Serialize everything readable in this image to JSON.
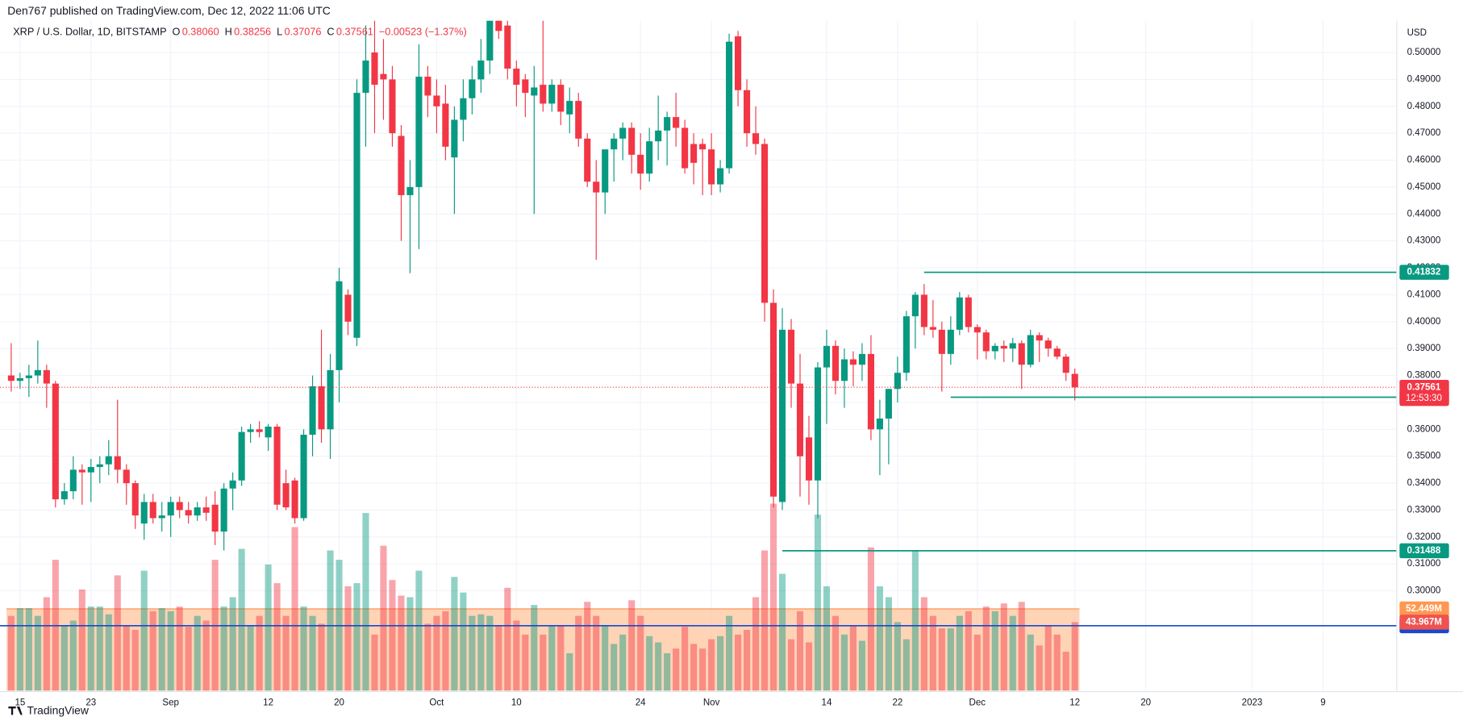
{
  "header": {
    "publisher": "Den767 published on TradingView.com, Dec 12, 2022 11:06 UTC"
  },
  "footer": {
    "brand": "TradingView"
  },
  "chart_data": {
    "type": "candlestick",
    "symbol": "XRP / U.S. Dollar, 1D, BITSTAMP",
    "ohlc_labels": [
      {
        "key": "O",
        "label": "0.38060"
      },
      {
        "key": "H",
        "label": "0.38256"
      },
      {
        "key": "L",
        "label": "0.37076"
      },
      {
        "key": "C",
        "label": "0.37561"
      }
    ],
    "change": "−0.00523 (−1.37%)",
    "currency": "USD",
    "up_color": "#089981",
    "down_color": "#f23645",
    "open": [
      0.38,
      0.378,
      0.379,
      0.38,
      0.382,
      0.377,
      0.334,
      0.337,
      0.345,
      0.344,
      0.346,
      0.347,
      0.35,
      0.345,
      0.34,
      0.325,
      0.333,
      0.327,
      0.328,
      0.333,
      0.33,
      0.328,
      0.331,
      0.332,
      0.322,
      0.338,
      0.341,
      0.359,
      0.36,
      0.357,
      0.361,
      0.34,
      0.341,
      0.327,
      0.358,
      0.376,
      0.36,
      0.382,
      0.41,
      0.394,
      0.485,
      0.5,
      0.492,
      0.49,
      0.469,
      0.447,
      0.45,
      0.491,
      0.484,
      0.481,
      0.461,
      0.475,
      0.483,
      0.49,
      0.497,
      0.515,
      0.51,
      0.494,
      0.49,
      0.484,
      0.488,
      0.481,
      0.488,
      0.477,
      0.482,
      0.468,
      0.452,
      0.448,
      0.464,
      0.468,
      0.472,
      0.462,
      0.455,
      0.467,
      0.471,
      0.476,
      0.472,
      0.466,
      0.466,
      0.464,
      0.451,
      0.457,
      0.506,
      0.486,
      0.47,
      0.466,
      0.407,
      0.333,
      0.397,
      0.377,
      0.357,
      0.341,
      0.383,
      0.391,
      0.378,
      0.386,
      0.384,
      0.388,
      0.36,
      0.364,
      0.375,
      0.381,
      0.402,
      0.41,
      0.398,
      0.397,
      0.388,
      0.397,
      0.409,
      0.398,
      0.396,
      0.389,
      0.391,
      0.39,
      0.392,
      0.384,
      0.395,
      0.393,
      0.39,
      0.387,
      0.3806
    ],
    "high": [
      0.392,
      0.381,
      0.384,
      0.393,
      0.384,
      0.378,
      0.34,
      0.35,
      0.347,
      0.349,
      0.35,
      0.356,
      0.371,
      0.347,
      0.341,
      0.336,
      0.336,
      0.333,
      0.335,
      0.335,
      0.333,
      0.333,
      0.335,
      0.337,
      0.34,
      0.344,
      0.361,
      0.362,
      0.363,
      0.362,
      0.362,
      0.345,
      0.342,
      0.36,
      0.38,
      0.397,
      0.388,
      0.42,
      0.412,
      0.49,
      0.51,
      0.515,
      0.505,
      0.495,
      0.473,
      0.46,
      0.503,
      0.495,
      0.49,
      0.488,
      0.48,
      0.49,
      0.495,
      0.505,
      0.52,
      0.52,
      0.515,
      0.497,
      0.492,
      0.495,
      0.515,
      0.49,
      0.49,
      0.487,
      0.485,
      0.47,
      0.46,
      0.463,
      0.47,
      0.474,
      0.474,
      0.47,
      0.472,
      0.484,
      0.478,
      0.485,
      0.475,
      0.47,
      0.468,
      0.47,
      0.46,
      0.507,
      0.508,
      0.49,
      0.48,
      0.468,
      0.412,
      0.405,
      0.401,
      0.388,
      0.365,
      0.385,
      0.397,
      0.393,
      0.39,
      0.389,
      0.392,
      0.395,
      0.371,
      0.375,
      0.387,
      0.404,
      0.411,
      0.414,
      0.408,
      0.4,
      0.402,
      0.411,
      0.41,
      0.399,
      0.397,
      0.392,
      0.393,
      0.394,
      0.393,
      0.397,
      0.396,
      0.394,
      0.391,
      0.388,
      0.38256
    ],
    "low": [
      0.374,
      0.375,
      0.372,
      0.377,
      0.368,
      0.331,
      0.332,
      0.334,
      0.332,
      0.333,
      0.34,
      0.343,
      0.34,
      0.332,
      0.323,
      0.319,
      0.325,
      0.322,
      0.32,
      0.327,
      0.325,
      0.326,
      0.326,
      0.317,
      0.315,
      0.33,
      0.339,
      0.355,
      0.357,
      0.352,
      0.33,
      0.33,
      0.325,
      0.326,
      0.35,
      0.355,
      0.349,
      0.37,
      0.395,
      0.391,
      0.465,
      0.47,
      0.475,
      0.465,
      0.43,
      0.418,
      0.427,
      0.476,
      0.47,
      0.46,
      0.44,
      0.467,
      0.477,
      0.485,
      0.492,
      0.505,
      0.49,
      0.48,
      0.476,
      0.44,
      0.478,
      0.478,
      0.473,
      0.47,
      0.465,
      0.45,
      0.423,
      0.44,
      0.452,
      0.46,
      0.455,
      0.449,
      0.452,
      0.46,
      0.458,
      0.465,
      0.455,
      0.451,
      0.447,
      0.447,
      0.448,
      0.455,
      0.48,
      0.465,
      0.462,
      0.4,
      0.331,
      0.33,
      0.368,
      0.335,
      0.332,
      0.327,
      0.362,
      0.373,
      0.368,
      0.376,
      0.378,
      0.356,
      0.343,
      0.347,
      0.37,
      0.378,
      0.39,
      0.395,
      0.394,
      0.374,
      0.384,
      0.395,
      0.396,
      0.386,
      0.386,
      0.386,
      0.385,
      0.385,
      0.375,
      0.383,
      0.385,
      0.387,
      0.386,
      0.378,
      0.37076
    ],
    "close": [
      0.378,
      0.379,
      0.38,
      0.382,
      0.377,
      0.334,
      0.337,
      0.345,
      0.344,
      0.346,
      0.347,
      0.35,
      0.345,
      0.34,
      0.328,
      0.333,
      0.327,
      0.328,
      0.333,
      0.33,
      0.328,
      0.331,
      0.329,
      0.322,
      0.338,
      0.341,
      0.359,
      0.36,
      0.359,
      0.361,
      0.332,
      0.331,
      0.327,
      0.358,
      0.376,
      0.36,
      0.382,
      0.415,
      0.4,
      0.485,
      0.497,
      0.488,
      0.49,
      0.47,
      0.447,
      0.45,
      0.491,
      0.484,
      0.48,
      0.465,
      0.475,
      0.483,
      0.49,
      0.497,
      0.515,
      0.508,
      0.494,
      0.488,
      0.485,
      0.487,
      0.481,
      0.488,
      0.478,
      0.482,
      0.468,
      0.452,
      0.448,
      0.464,
      0.468,
      0.472,
      0.462,
      0.455,
      0.467,
      0.471,
      0.476,
      0.472,
      0.457,
      0.459,
      0.464,
      0.451,
      0.457,
      0.504,
      0.486,
      0.47,
      0.466,
      0.407,
      0.335,
      0.397,
      0.377,
      0.35,
      0.341,
      0.383,
      0.391,
      0.378,
      0.386,
      0.384,
      0.388,
      0.36,
      0.364,
      0.375,
      0.381,
      0.402,
      0.41,
      0.398,
      0.397,
      0.388,
      0.397,
      0.409,
      0.398,
      0.396,
      0.389,
      0.391,
      0.39,
      0.392,
      0.384,
      0.395,
      0.393,
      0.39,
      0.387,
      0.381,
      0.37561
    ],
    "volume": [
      48,
      53,
      53,
      48,
      60,
      84,
      42,
      45,
      65,
      54,
      54,
      49,
      74,
      42,
      39,
      77,
      51,
      53,
      51,
      54,
      41,
      48,
      45,
      84,
      54,
      60,
      91,
      42,
      48,
      81,
      69,
      48,
      105,
      54,
      48,
      43,
      90,
      84,
      67,
      69,
      114,
      36,
      93,
      71,
      61,
      60,
      77,
      43,
      48,
      51,
      73,
      63,
      48,
      49,
      48,
      42,
      66,
      45,
      36,
      55,
      36,
      42,
      42,
      24,
      48,
      57,
      48,
      42,
      30,
      36,
      58,
      48,
      35,
      31,
      24,
      27,
      41,
      30,
      27,
      33,
      35,
      48,
      36,
      39,
      60,
      90,
      120,
      75,
      33,
      51,
      31,
      113,
      67,
      48,
      36,
      42,
      32,
      92,
      67,
      60,
      44,
      33,
      90,
      60,
      48,
      40,
      40,
      48,
      51,
      36,
      54,
      51,
      56,
      48,
      57,
      36,
      29,
      42,
      36,
      25,
      43.967
    ],
    "volume_last_label": "43.967M",
    "volume_ma": {
      "value": 52.449,
      "label": "52.449M"
    },
    "volume_ylim": [
      0,
      430
    ],
    "last_price_countdown": "12:53:30",
    "levels": [
      {
        "value": 0.41832,
        "from": 103,
        "color": "#089981"
      },
      {
        "value": 0.37192,
        "from": 106,
        "color": "#089981"
      },
      {
        "value": 0.31488,
        "from": 87,
        "color": "#089981"
      },
      {
        "value": 0.28704,
        "color": "#1848cc"
      }
    ],
    "xlim": [
      -1.263,
      156.32
    ],
    "xticks": [
      {
        "value": 1,
        "label": "15"
      },
      {
        "value": 9,
        "label": "23"
      },
      {
        "value": 18,
        "label": "Sep"
      },
      {
        "value": 29,
        "label": "12"
      },
      {
        "value": 37,
        "label": "20"
      },
      {
        "value": 48,
        "label": "Oct"
      },
      {
        "value": 57,
        "label": "10"
      },
      {
        "value": 71,
        "label": "24"
      },
      {
        "value": 79,
        "label": "Nov"
      },
      {
        "value": 92,
        "label": "14"
      },
      {
        "value": 100,
        "label": "22"
      },
      {
        "value": 109,
        "label": "Dec"
      },
      {
        "value": 120,
        "label": "12"
      },
      {
        "value": 128,
        "label": "20"
      },
      {
        "value": 140,
        "label": "2023"
      },
      {
        "value": 148,
        "label": "9"
      }
    ],
    "ylim": [
      0.26291,
      0.51179
    ],
    "yticks": [
      {
        "value": 0.3,
        "label": "0.30000"
      },
      {
        "value": 0.31,
        "label": "0.31000"
      },
      {
        "value": 0.32,
        "label": "0.32000"
      },
      {
        "value": 0.33,
        "label": "0.33000"
      },
      {
        "value": 0.34,
        "label": "0.34000"
      },
      {
        "value": 0.35,
        "label": "0.35000"
      },
      {
        "value": 0.36,
        "label": "0.36000"
      },
      {
        "value": 0.37,
        "label": "0.37000"
      },
      {
        "value": 0.38,
        "label": "0.38000"
      },
      {
        "value": 0.39,
        "label": "0.39000"
      },
      {
        "value": 0.4,
        "label": "0.40000"
      },
      {
        "value": 0.41,
        "label": "0.41000"
      },
      {
        "value": 0.42,
        "label": "0.42000"
      },
      {
        "value": 0.43,
        "label": "0.43000"
      },
      {
        "value": 0.44,
        "label": "0.44000"
      },
      {
        "value": 0.45,
        "label": "0.45000"
      },
      {
        "value": 0.46,
        "label": "0.46000"
      },
      {
        "value": 0.47,
        "label": "0.47000"
      },
      {
        "value": 0.48,
        "label": "0.48000"
      },
      {
        "value": 0.49,
        "label": "0.49000"
      },
      {
        "value": 0.5,
        "label": "0.50000"
      }
    ],
    "grid": true
  }
}
